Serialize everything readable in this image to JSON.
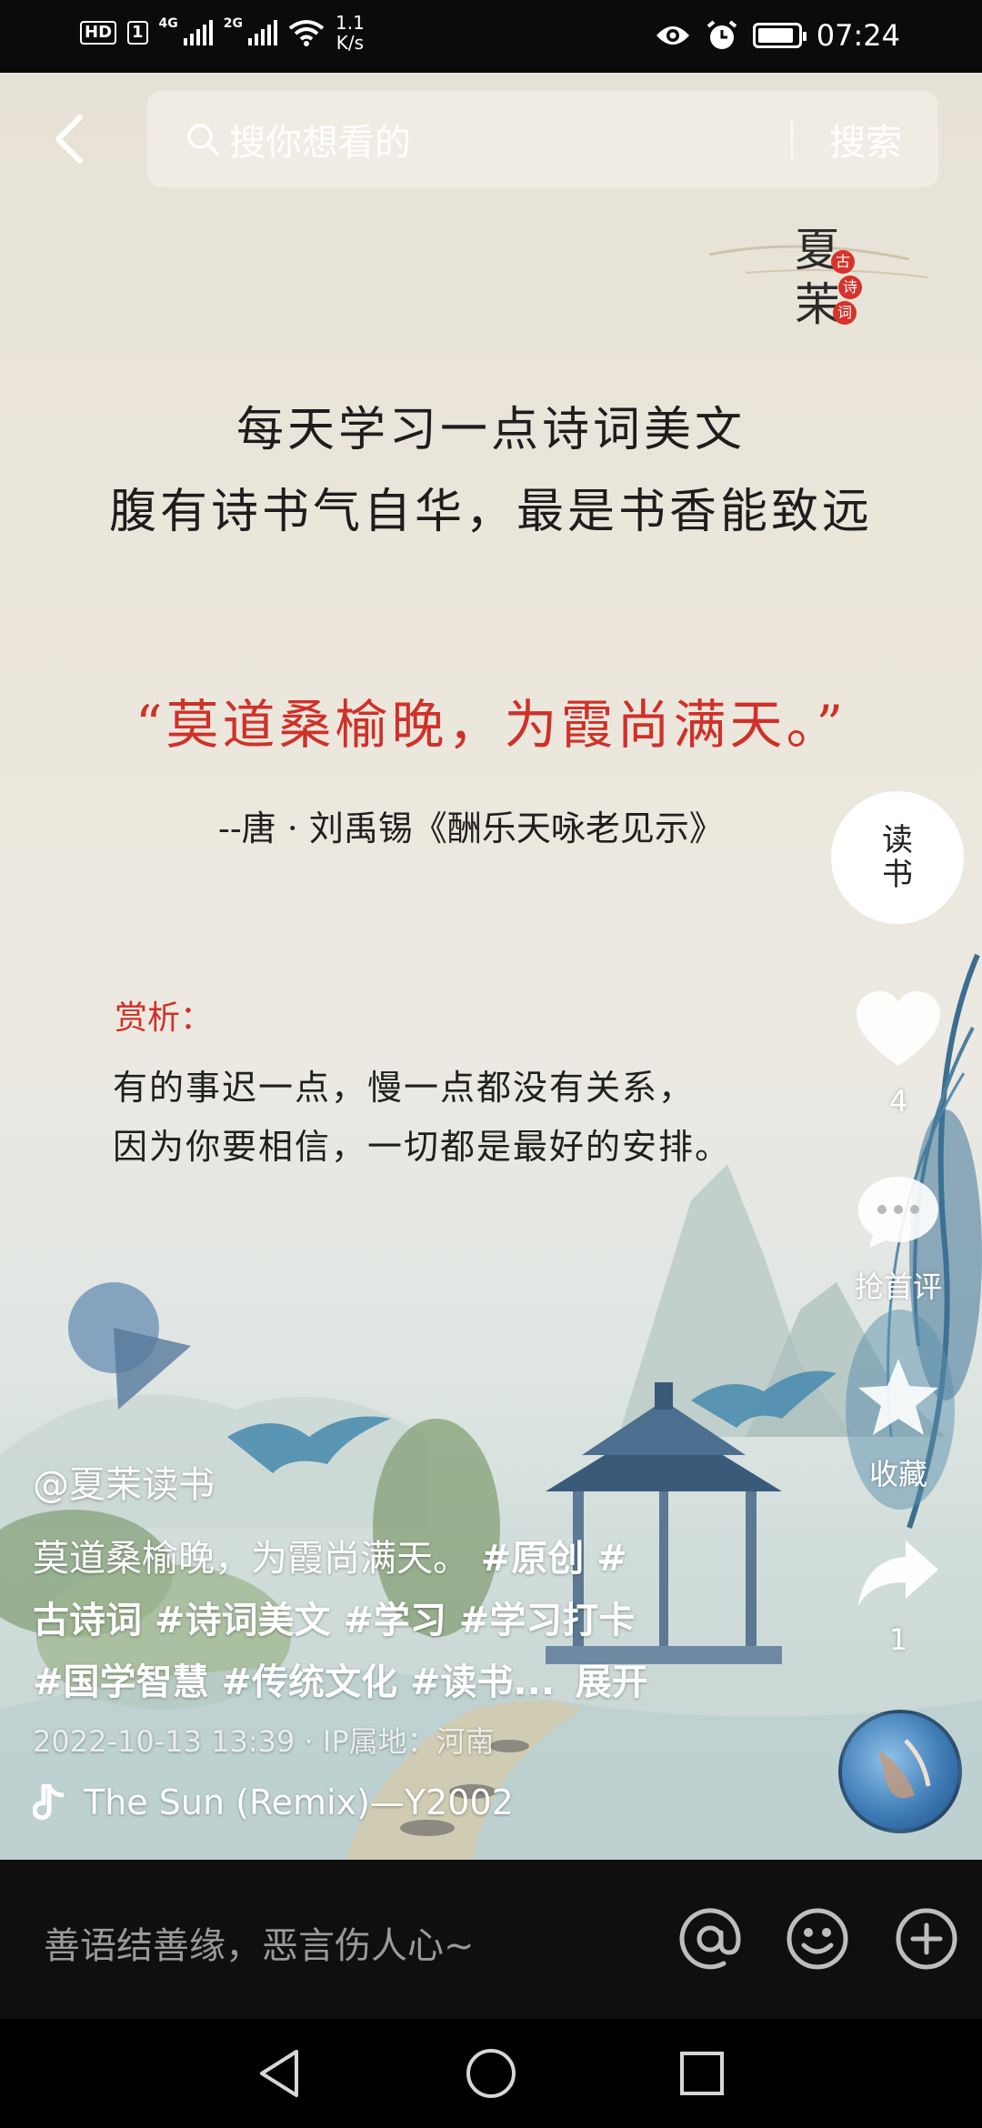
{
  "status_bar": {
    "hd": "HD",
    "sim": "1",
    "net1": "4G",
    "net2": "2G",
    "speed_value": "1.1",
    "speed_unit": "K/s",
    "time": "07:24",
    "battery_level": 0.9
  },
  "top_bar": {
    "search_placeholder": "搜你想看的",
    "search_button": "搜索"
  },
  "video": {
    "logo_chars": [
      "夏",
      "茉"
    ],
    "logo_seals": [
      "古",
      "诗",
      "词"
    ],
    "headline_lines": [
      "每天学习一点诗词美文",
      "腹有诗书气自华，最是书香能致远"
    ],
    "quote": "“莫道桑榆晚，为霞尚满天。”",
    "attribution": "--唐 · 刘禹锡《酬乐天咏老见示》",
    "analysis_title": "赏析：",
    "analysis_lines": [
      "有的事迟一点，慢一点都没有关系，",
      "因为你要相信，一切都是最好的安排。"
    ]
  },
  "actions": {
    "avatar_text": "读书",
    "like_count": "4",
    "comment_label": "抢首评",
    "favorite_label": "收藏",
    "share_count": "1"
  },
  "caption": {
    "username": "@夏茉读书",
    "text": "莫道桑榆晚，为霞尚满天。",
    "tags_line1": "#原创 #",
    "tags_line2": "古诗词 #诗词美文 #学习 #学习打卡",
    "tags_line3": "#国学智慧 #传统文化 #读书...",
    "expand": "展开",
    "timestamp": "2022-10-13 13:39 · IP属地：河南",
    "music": "The Sun (Remix)—Y2002"
  },
  "comment_bar": {
    "placeholder": "善语结善缘，恶言伤人心~"
  }
}
